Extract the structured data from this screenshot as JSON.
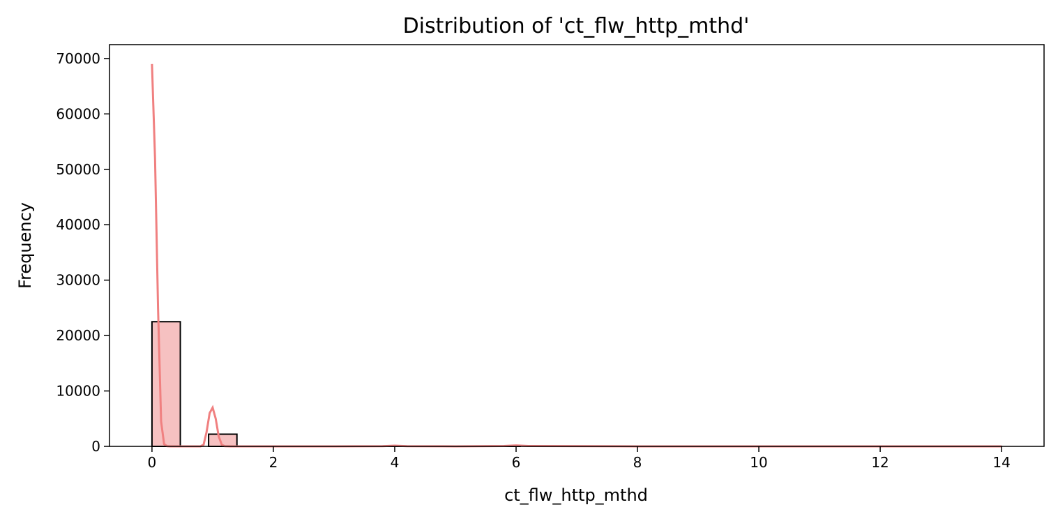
{
  "chart_data": {
    "type": "bar",
    "title": "Distribution of 'ct_flw_http_mthd'",
    "xlabel": "ct_flw_http_mthd",
    "ylabel": "Frequency",
    "xlim": [
      -0.7,
      14.7
    ],
    "ylim": [
      0,
      72500
    ],
    "xticks": [
      "0",
      "2",
      "4",
      "6",
      "8",
      "10",
      "12",
      "14"
    ],
    "yticks": [
      "0",
      "10000",
      "20000",
      "30000",
      "40000",
      "50000",
      "60000",
      "70000"
    ],
    "grid": false,
    "bins": [
      {
        "x0": 0.0,
        "x1": 0.467,
        "count": 22500
      },
      {
        "x0": 0.467,
        "x1": 0.933,
        "count": 0
      },
      {
        "x0": 0.933,
        "x1": 1.4,
        "count": 2200
      },
      {
        "x0": 3.733,
        "x1": 4.2,
        "count": 15
      },
      {
        "x0": 5.6,
        "x1": 6.067,
        "count": 25
      },
      {
        "x0": 13.533,
        "x1": 14.0,
        "count": 2
      }
    ],
    "kde": {
      "x": [
        0.0,
        0.05,
        0.1,
        0.15,
        0.2,
        0.25,
        0.3,
        0.4,
        0.5,
        0.6,
        0.7,
        0.8,
        0.85,
        0.9,
        0.95,
        1.0,
        1.05,
        1.1,
        1.15,
        1.2,
        1.3,
        1.5,
        2,
        3,
        3.8,
        4.0,
        4.2,
        5,
        5.8,
        6.0,
        6.2,
        8,
        10,
        12,
        14
      ],
      "y": [
        69000,
        52000,
        25000,
        4500,
        400,
        20,
        0,
        0,
        0,
        0,
        0,
        0,
        300,
        2600,
        6000,
        7000,
        5000,
        1800,
        300,
        30,
        0,
        0,
        0,
        0,
        40,
        120,
        40,
        0,
        60,
        180,
        60,
        0,
        0,
        0,
        0
      ]
    },
    "colors": {
      "bar_fill": "#f6c1c1",
      "bar_edge": "#000000",
      "kde_line": "#f08080"
    }
  }
}
